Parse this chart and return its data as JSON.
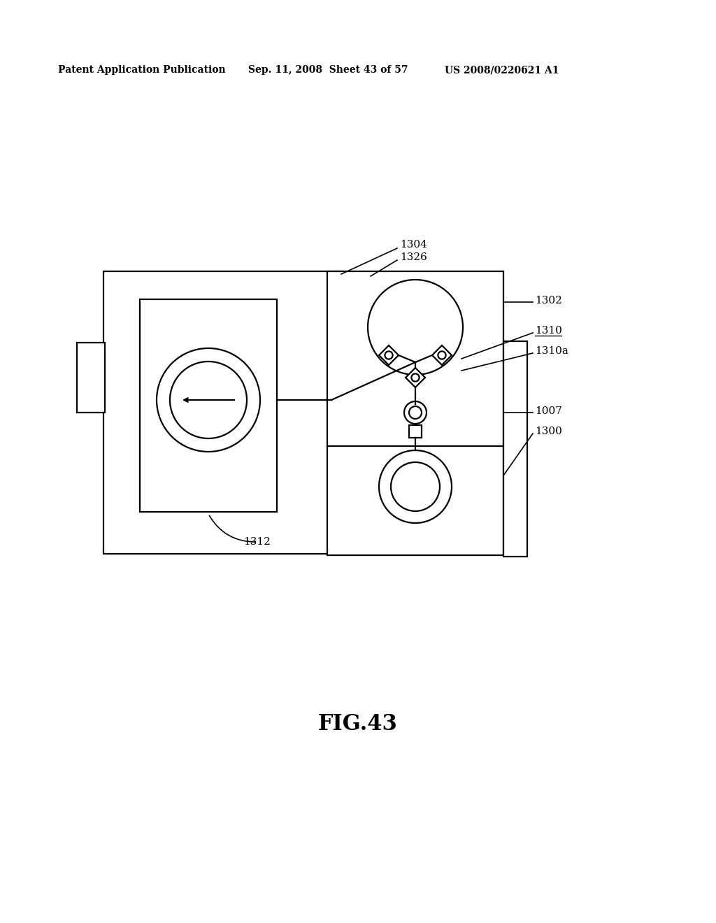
{
  "bg_color": "#ffffff",
  "header_left": "Patent Application Publication",
  "header_mid": "Sep. 11, 2008  Sheet 43 of 57",
  "header_right": "US 2008/0220621 A1",
  "fig_label": "FIG.43",
  "line_color": "#000000",
  "lw": 1.6,
  "label_lw": 1.2,
  "label_fs": 11,
  "header_fs": 10,
  "fig_fs": 22
}
